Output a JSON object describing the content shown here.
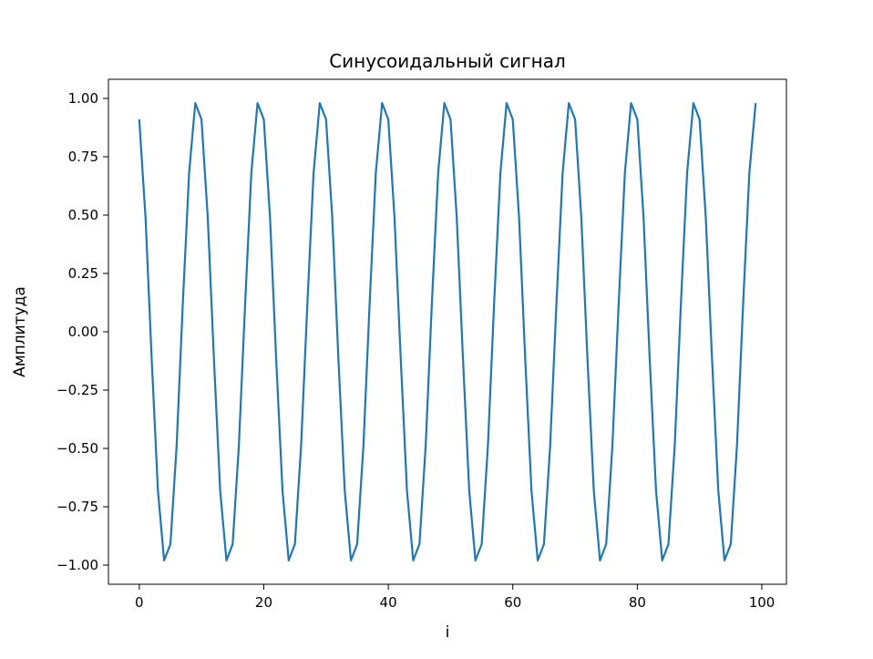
{
  "chart_data": {
    "type": "line",
    "title": "Синусоидальный сигнал",
    "xlabel": "i",
    "ylabel": "Амплитуда",
    "xlim": [
      -4.95,
      103.95
    ],
    "ylim": [
      -1.082,
      1.082
    ],
    "xticks": [
      0,
      20,
      40,
      60,
      80,
      100
    ],
    "xtick_labels": [
      "0",
      "20",
      "40",
      "60",
      "80",
      "100"
    ],
    "yticks": [
      1.0,
      0.75,
      0.5,
      0.25,
      0.0,
      -0.25,
      -0.5,
      -0.75,
      -1.0
    ],
    "ytick_labels": [
      "1.00",
      "0.75",
      "0.50",
      "0.25",
      "0.00",
      "−0.25",
      "−0.50",
      "−0.75",
      "−1.00"
    ],
    "grid": false,
    "series": [
      {
        "color": "#1f77b4",
        "x": [
          0,
          1,
          2,
          3,
          4,
          5,
          6,
          7,
          8,
          9,
          10,
          11,
          12,
          13,
          14,
          15,
          16,
          17,
          18,
          19,
          20,
          21,
          22,
          23,
          24,
          25,
          26,
          27,
          28,
          29,
          30,
          31,
          32,
          33,
          34,
          35,
          36,
          37,
          38,
          39,
          40,
          41,
          42,
          43,
          44,
          45,
          46,
          47,
          48,
          49,
          50,
          51,
          52,
          53,
          54,
          55,
          56,
          57,
          58,
          59,
          60,
          61,
          62,
          63,
          64,
          65,
          66,
          67,
          68,
          69,
          70,
          71,
          72,
          73,
          74,
          75,
          76,
          77,
          78,
          79,
          80,
          81,
          82,
          83,
          84,
          85,
          86,
          87,
          88,
          89,
          90,
          91,
          92,
          93,
          94,
          95,
          96,
          97,
          98,
          99
        ],
        "y": [
          0.91,
          0.49,
          -0.12,
          -0.68,
          -0.98,
          -0.91,
          -0.49,
          0.12,
          0.68,
          0.98,
          0.91,
          0.49,
          -0.12,
          -0.68,
          -0.98,
          -0.91,
          -0.49,
          0.12,
          0.68,
          0.98,
          0.91,
          0.49,
          -0.12,
          -0.68,
          -0.98,
          -0.91,
          -0.49,
          0.12,
          0.68,
          0.98,
          0.91,
          0.49,
          -0.12,
          -0.68,
          -0.98,
          -0.91,
          -0.49,
          0.12,
          0.68,
          0.98,
          0.91,
          0.49,
          -0.12,
          -0.68,
          -0.98,
          -0.91,
          -0.49,
          0.12,
          0.68,
          0.98,
          0.91,
          0.49,
          -0.12,
          -0.68,
          -0.98,
          -0.91,
          -0.49,
          0.12,
          0.68,
          0.98,
          0.91,
          0.49,
          -0.12,
          -0.68,
          -0.98,
          -0.91,
          -0.49,
          0.12,
          0.68,
          0.98,
          0.91,
          0.49,
          -0.12,
          -0.68,
          -0.98,
          -0.91,
          -0.49,
          0.12,
          0.68,
          0.98,
          0.91,
          0.49,
          -0.12,
          -0.68,
          -0.98,
          -0.91,
          -0.49,
          0.12,
          0.68,
          0.98,
          0.91,
          0.49,
          -0.12,
          -0.68,
          -0.98,
          -0.91,
          -0.49,
          0.12,
          0.68,
          0.98
        ]
      }
    ]
  }
}
